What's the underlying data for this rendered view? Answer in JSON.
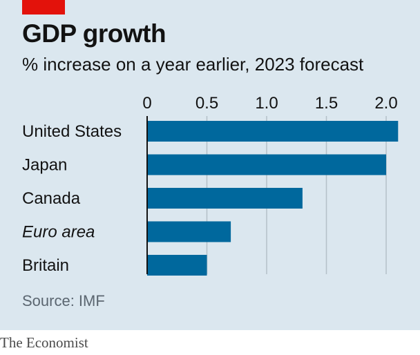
{
  "header": {
    "title": "GDP growth",
    "subtitle": "% increase on a year earlier, 2023 forecast"
  },
  "footer": {
    "source": "Source: IMF",
    "brand": "The Economist"
  },
  "colors": {
    "background": "#dbe7ef",
    "bar": "#00689d",
    "accent": "#e3120b",
    "grid": "#b4c0c8"
  },
  "chart_data": {
    "type": "bar",
    "orientation": "horizontal",
    "title": "GDP growth",
    "subtitle": "% increase on a year earlier, 2023 forecast",
    "categories": [
      "United States",
      "Japan",
      "Canada",
      "Euro area",
      "Britain"
    ],
    "italic_categories": [
      "Euro area"
    ],
    "values": [
      2.1,
      2.0,
      1.3,
      0.7,
      0.5
    ],
    "xlim": [
      0,
      2.1
    ],
    "xticks": [
      0,
      0.5,
      1.0,
      1.5,
      2.0
    ],
    "xtick_labels": [
      "0",
      "0.5",
      "1.0",
      "1.5",
      "2.0"
    ],
    "grid": true,
    "xaxis_position": "top"
  }
}
